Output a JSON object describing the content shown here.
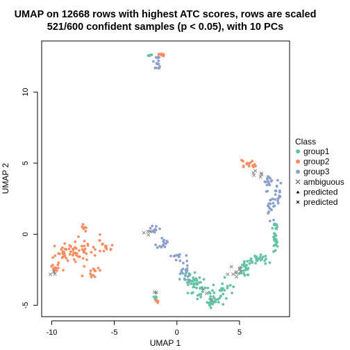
{
  "chart_data": {
    "type": "scatter",
    "title_lines": [
      "UMAP on 12668 rows with highest ATC scores, rows are scaled",
      "521/600 confident samples (p < 0.05), with 10 PCs"
    ],
    "xlabel": "UMAP 1",
    "ylabel": "UMAP 2",
    "xlim": [
      -10.8,
      9.0
    ],
    "ylim": [
      -5.8,
      13.6
    ],
    "x_ticks": [
      -10,
      -5,
      0,
      5
    ],
    "y_ticks": [
      -5,
      0,
      5,
      10
    ],
    "grid": false,
    "legend": {
      "title": "Class",
      "position": "right",
      "entries": [
        {
          "label": "group1",
          "symbol": "dot",
          "color": "#66C2A5"
        },
        {
          "label": "group2",
          "symbol": "dot",
          "color": "#FC8D62"
        },
        {
          "label": "group3",
          "symbol": "dot",
          "color": "#8DA0CB"
        },
        {
          "label": "ambiguous",
          "symbol": "cross-x",
          "color": "#666666"
        },
        {
          "label": "predicted",
          "symbol": "triangle",
          "color": "#000000"
        },
        {
          "label": "predicted",
          "symbol": "small-x",
          "color": "#000000"
        }
      ]
    },
    "series": [
      {
        "name": "group1",
        "color": "#66C2A5",
        "clusters": [
          {
            "cx": -2.1,
            "cy": 12.6,
            "sx": 0.1,
            "sy": 0.06,
            "n": 8
          },
          {
            "cx": 1.0,
            "cy": -3.1,
            "sx": 0.35,
            "sy": 0.3,
            "n": 25
          },
          {
            "cx": 2.0,
            "cy": -3.9,
            "sx": 0.5,
            "sy": 0.4,
            "n": 30
          },
          {
            "cx": 2.9,
            "cy": -4.7,
            "sx": 0.35,
            "sy": 0.25,
            "n": 22
          },
          {
            "cx": 3.8,
            "cy": -3.8,
            "sx": 0.35,
            "sy": 0.4,
            "n": 18
          },
          {
            "cx": 5.2,
            "cy": -2.4,
            "sx": 0.4,
            "sy": 0.25,
            "n": 22
          },
          {
            "cx": 6.5,
            "cy": -1.8,
            "sx": 0.7,
            "sy": 0.2,
            "n": 25
          },
          {
            "cx": 7.9,
            "cy": -0.3,
            "sx": 0.12,
            "sy": 0.6,
            "n": 28
          },
          {
            "cx": -1.7,
            "cy": -4.4,
            "sx": 0.06,
            "sy": 0.12,
            "n": 6
          }
        ]
      },
      {
        "name": "group2",
        "color": "#FC8D62",
        "clusters": [
          {
            "cx": -1.2,
            "cy": 12.65,
            "sx": 0.15,
            "sy": 0.05,
            "n": 10
          },
          {
            "cx": -7.4,
            "cy": 0.5,
            "sx": 0.1,
            "sy": 0.15,
            "n": 8
          },
          {
            "cx": -9.0,
            "cy": -1.4,
            "sx": 0.5,
            "sy": 0.35,
            "n": 28
          },
          {
            "cx": -7.5,
            "cy": -1.2,
            "sx": 0.6,
            "sy": 0.45,
            "n": 34
          },
          {
            "cx": -6.8,
            "cy": -2.6,
            "sx": 0.3,
            "sy": 0.3,
            "n": 14
          },
          {
            "cx": -5.6,
            "cy": -0.9,
            "sx": 0.35,
            "sy": 0.25,
            "n": 14
          },
          {
            "cx": -9.8,
            "cy": -2.4,
            "sx": 0.25,
            "sy": 0.2,
            "n": 10
          },
          {
            "cx": 5.8,
            "cy": 4.9,
            "sx": 0.3,
            "sy": 0.15,
            "n": 16
          },
          {
            "cx": -1.6,
            "cy": -4.7,
            "sx": 0.06,
            "sy": 0.1,
            "n": 5
          }
        ]
      },
      {
        "name": "group3",
        "color": "#8DA0CB",
        "clusters": [
          {
            "cx": -1.6,
            "cy": 11.9,
            "sx": 0.12,
            "sy": 0.12,
            "n": 10
          },
          {
            "cx": -1.8,
            "cy": 0.4,
            "sx": 0.18,
            "sy": 0.25,
            "n": 10
          },
          {
            "cx": -1.2,
            "cy": -0.7,
            "sx": 0.3,
            "sy": 0.3,
            "n": 14
          },
          {
            "cx": 0.1,
            "cy": -1.6,
            "sx": 0.35,
            "sy": 0.2,
            "n": 12
          },
          {
            "cx": 0.5,
            "cy": -2.5,
            "sx": 0.3,
            "sy": 0.35,
            "n": 14
          },
          {
            "cx": 7.2,
            "cy": 3.5,
            "sx": 0.35,
            "sy": 0.35,
            "n": 14
          },
          {
            "cx": 8.0,
            "cy": 2.8,
            "sx": 0.2,
            "sy": 0.4,
            "n": 18
          },
          {
            "cx": 7.6,
            "cy": 1.8,
            "sx": 0.2,
            "sy": 0.4,
            "n": 16
          },
          {
            "cx": -1.5,
            "cy": 12.4,
            "sx": 0.05,
            "sy": 0.05,
            "n": 4
          }
        ]
      },
      {
        "name": "ambiguous",
        "color": "#888888",
        "clusters": [
          {
            "cx": 4.7,
            "cy": -2.7,
            "sx": 0.35,
            "sy": 0.25,
            "n": 9
          },
          {
            "cx": 6.5,
            "cy": 4.3,
            "sx": 0.25,
            "sy": 0.25,
            "n": 6
          },
          {
            "cx": -2.3,
            "cy": 0.1,
            "sx": 0.2,
            "sy": 0.15,
            "n": 4
          },
          {
            "cx": -9.8,
            "cy": -2.6,
            "sx": 0.15,
            "sy": 0.15,
            "n": 4
          },
          {
            "cx": 2.5,
            "cy": -4.2,
            "sx": 0.3,
            "sy": 0.2,
            "n": 3
          },
          {
            "cx": -1.7,
            "cy": -4.1,
            "sx": 0.08,
            "sy": 0.1,
            "n": 2
          }
        ]
      }
    ]
  }
}
